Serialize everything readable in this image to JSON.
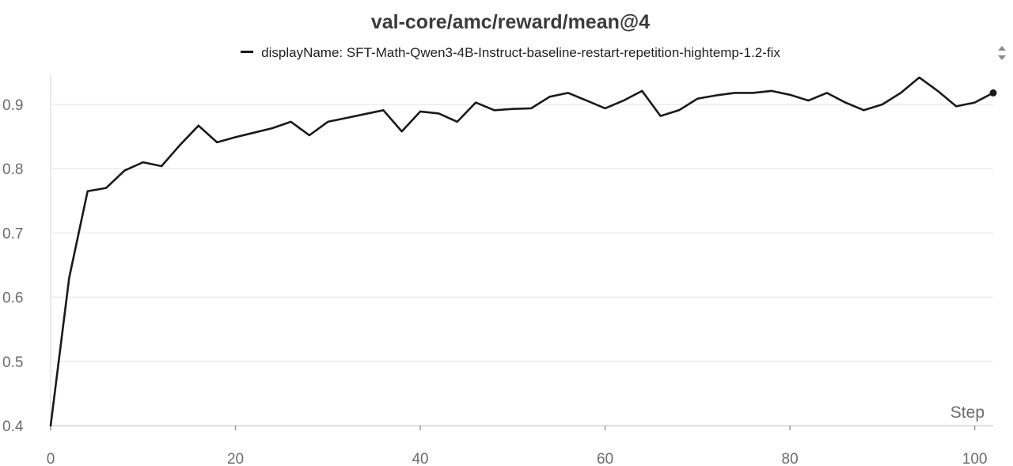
{
  "chart_data": {
    "type": "line",
    "title": "val-core/amc/reward/mean@4",
    "xlabel": "Step",
    "ylabel": "",
    "xlim": [
      0,
      102
    ],
    "ylim": [
      0.4,
      0.95
    ],
    "xticks": [
      0,
      20,
      40,
      60,
      80,
      100
    ],
    "yticks": [
      0.4,
      0.5,
      0.6,
      0.7,
      0.8,
      0.9
    ],
    "grid": true,
    "legend_position": "top-center",
    "series": [
      {
        "name": "displayName: SFT-Math-Qwen3-4B-Instruct-baseline-restart-repetition-hightemp-1.2-fix",
        "color": "#1a1a1a",
        "x": [
          0,
          2,
          4,
          6,
          8,
          10,
          12,
          14,
          16,
          18,
          20,
          22,
          24,
          26,
          28,
          30,
          32,
          34,
          36,
          38,
          40,
          42,
          44,
          46,
          48,
          50,
          52,
          54,
          56,
          58,
          60,
          62,
          64,
          66,
          68,
          70,
          72,
          74,
          76,
          78,
          80,
          82,
          84,
          86,
          88,
          90,
          92,
          94,
          96,
          98,
          100,
          102
        ],
        "values": [
          0.4,
          0.63,
          0.765,
          0.77,
          0.797,
          0.81,
          0.804,
          0.837,
          0.867,
          0.841,
          0.849,
          0.856,
          0.863,
          0.873,
          0.852,
          0.873,
          0.879,
          0.885,
          0.891,
          0.858,
          0.889,
          0.886,
          0.873,
          0.903,
          0.891,
          0.893,
          0.894,
          0.912,
          0.918,
          0.906,
          0.894,
          0.906,
          0.921,
          0.882,
          0.891,
          0.909,
          0.914,
          0.918,
          0.918,
          0.921,
          0.915,
          0.906,
          0.918,
          0.903,
          0.891,
          0.9,
          0.918,
          0.942,
          0.921,
          0.897,
          0.903,
          0.918
        ]
      }
    ]
  },
  "icons": {
    "scroll": "scroll-up-down-icon"
  }
}
